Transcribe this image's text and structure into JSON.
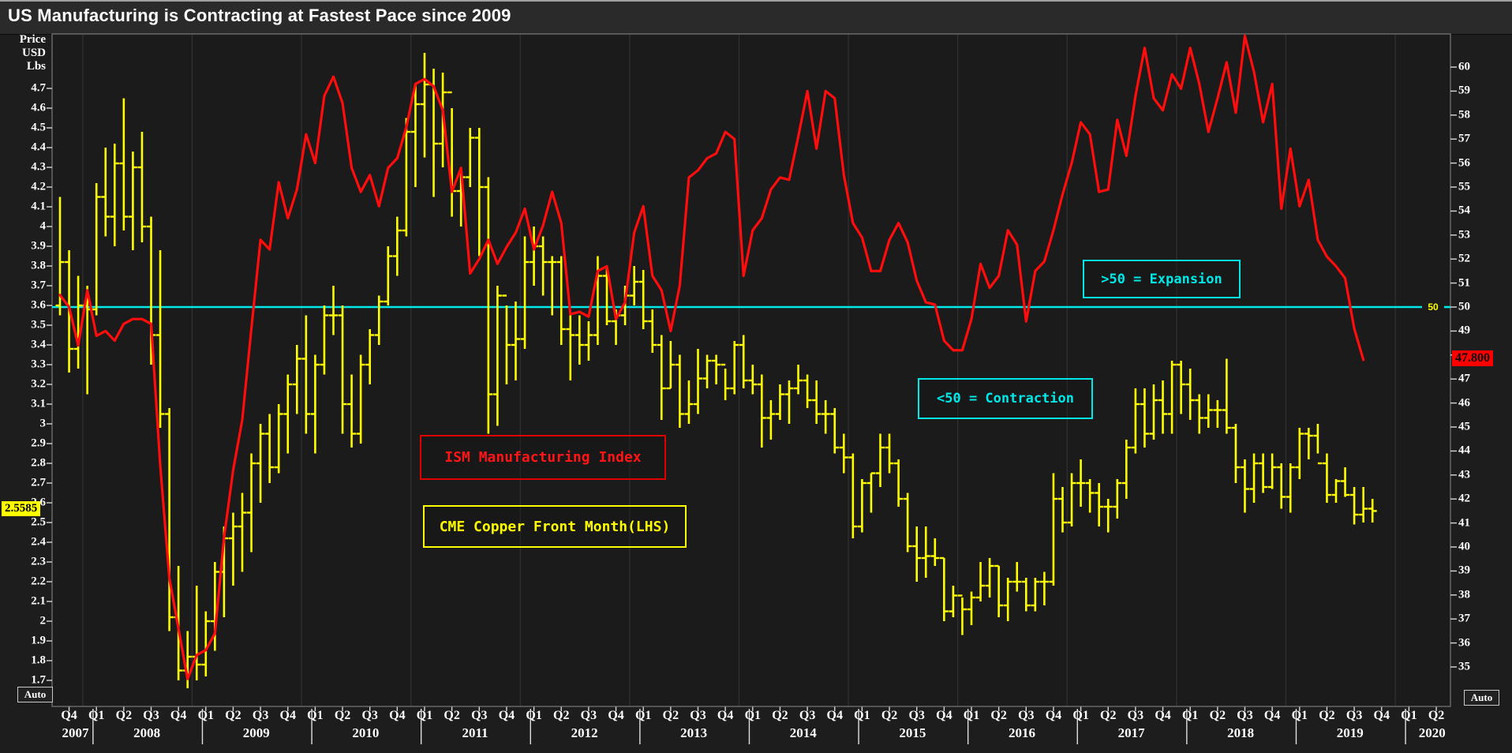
{
  "title": "US Manufacturing is Contracting at Fastest Pace since 2009",
  "left_axis": {
    "header": [
      "Price",
      "USD",
      "Lbs"
    ],
    "tick_labels": [
      "4.7",
      "4.6",
      "4.5",
      "4.4",
      "4.3",
      "4.2",
      "4.1",
      "4",
      "3.9",
      "3.8",
      "3.7",
      "3.6",
      "3.5",
      "3.4",
      "3.3",
      "3.2",
      "3.1",
      "3",
      "2.9",
      "2.8",
      "2.7",
      "2.6",
      "2.5",
      "2.4",
      "2.3",
      "2.2",
      "2.1",
      "2",
      "1.9",
      "1.8",
      "1.7"
    ],
    "last_price_tag": "2.5585",
    "auto_label": "Auto"
  },
  "right_axis": {
    "tick_labels": [
      "60",
      "59",
      "58",
      "57",
      "56",
      "55",
      "54",
      "53",
      "52",
      "51",
      "50",
      "49",
      "48",
      "47",
      "46",
      "45",
      "44",
      "43",
      "42",
      "41",
      "40",
      "39",
      "38",
      "37",
      "36",
      "35"
    ],
    "last_value_tag": "47.800",
    "hline_inner_label": "50",
    "auto_label": "Auto"
  },
  "x_axis": {
    "years": [
      {
        "label": "2007",
        "quarters": [
          "Q4"
        ]
      },
      {
        "label": "2008",
        "quarters": [
          "Q1",
          "Q2",
          "Q3",
          "Q4"
        ]
      },
      {
        "label": "2009",
        "quarters": [
          "Q1",
          "Q2",
          "Q3",
          "Q4"
        ]
      },
      {
        "label": "2010",
        "quarters": [
          "Q1",
          "Q2",
          "Q3",
          "Q4"
        ]
      },
      {
        "label": "2011",
        "quarters": [
          "Q1",
          "Q2",
          "Q3",
          "Q4"
        ]
      },
      {
        "label": "2012",
        "quarters": [
          "Q1",
          "Q2",
          "Q3",
          "Q4"
        ]
      },
      {
        "label": "2013",
        "quarters": [
          "Q1",
          "Q2",
          "Q3",
          "Q4"
        ]
      },
      {
        "label": "2014",
        "quarters": [
          "Q1",
          "Q2",
          "Q3",
          "Q4"
        ]
      },
      {
        "label": "2015",
        "quarters": [
          "Q1",
          "Q2",
          "Q3",
          "Q4"
        ]
      },
      {
        "label": "2016",
        "quarters": [
          "Q1",
          "Q2",
          "Q3",
          "Q4"
        ]
      },
      {
        "label": "2017",
        "quarters": [
          "Q1",
          "Q2",
          "Q3",
          "Q4"
        ]
      },
      {
        "label": "2018",
        "quarters": [
          "Q1",
          "Q2",
          "Q3",
          "Q4"
        ]
      },
      {
        "label": "2019",
        "quarters": [
          "Q1",
          "Q2",
          "Q3",
          "Q4"
        ]
      },
      {
        "label": "2020",
        "quarters": [
          "Q1",
          "Q2"
        ]
      }
    ]
  },
  "annotations": {
    "expansion": ">50 = Expansion",
    "contraction": "<50 = Contraction",
    "ism_label": "ISM Manufacturing Index",
    "copper_label": "CME Copper Front Month(LHS)"
  },
  "colors": {
    "copper": "#ffff00",
    "ism": "#ff0d0d",
    "threshold": "#00e8e8",
    "tag_yellow": "#ffff00",
    "tag_red": "#ff0000",
    "grid": "#323232",
    "border": "#7a7a7a",
    "tick": "#d8d8d8"
  },
  "chart_data": {
    "type": "mixed",
    "title": "US Manufacturing is Contracting at Fastest Pace since 2009",
    "x_start_month": "2007-10",
    "x_axis_end_month": "2020-06",
    "left_ylabel": "Price USD Lbs",
    "left_ylim": [
      1.57,
      4.98
    ],
    "right_ylim": [
      33.4,
      61.4
    ],
    "grid": "vertical-year-lines",
    "legend_position": "in-plot-annotation-boxes",
    "hline": {
      "value": 50,
      "axis": "right",
      "labels": [
        ">50 = Expansion",
        "<50 = Contraction"
      ]
    },
    "series": [
      {
        "name": "CME Copper Front Month(LHS)",
        "type": "ohlc_bar",
        "axis": "left",
        "interval": "monthly",
        "start_month": "2007-10",
        "end_month": "2019-10",
        "first_open": 3.6,
        "last_price": 2.5585,
        "high": [
          4.15,
          3.88,
          3.75,
          3.7,
          4.22,
          4.4,
          4.42,
          4.65,
          4.38,
          4.48,
          4.05,
          3.88,
          3.08,
          2.28,
          1.95,
          2.18,
          2.05,
          2.3,
          2.48,
          2.55,
          2.65,
          2.85,
          3.0,
          3.05,
          3.1,
          3.25,
          3.4,
          3.55,
          3.35,
          3.6,
          3.7,
          3.6,
          3.25,
          3.35,
          3.48,
          3.65,
          3.9,
          4.05,
          4.55,
          4.72,
          4.88,
          4.8,
          4.78,
          4.6,
          4.3,
          4.5,
          4.5,
          4.25,
          3.7,
          3.6,
          3.62,
          3.95,
          4.0,
          3.95,
          3.85,
          3.85,
          3.55,
          3.55,
          3.52,
          3.85,
          3.8,
          3.58,
          3.7,
          3.8,
          3.78,
          3.58,
          3.45,
          3.42,
          3.35,
          3.22,
          3.38,
          3.35,
          3.35,
          3.28,
          3.42,
          3.45,
          3.3,
          3.25,
          3.12,
          3.2,
          3.22,
          3.3,
          3.25,
          3.22,
          3.12,
          3.08,
          2.95,
          2.85,
          2.72,
          2.75,
          2.95,
          2.95,
          2.82,
          2.65,
          2.48,
          2.48,
          2.42,
          2.32,
          2.18,
          2.12,
          2.15,
          2.3,
          2.32,
          2.28,
          2.22,
          2.3,
          2.22,
          2.22,
          2.25,
          2.75,
          2.68,
          2.75,
          2.82,
          2.72,
          2.7,
          2.62,
          2.72,
          2.92,
          3.18,
          3.18,
          3.2,
          3.22,
          3.32,
          3.32,
          3.28,
          3.15,
          3.15,
          3.12,
          3.33,
          3.0,
          2.82,
          2.85,
          2.85,
          2.85,
          2.8,
          2.8,
          2.98,
          2.98,
          3.0,
          2.85,
          2.72,
          2.78,
          2.68,
          2.68,
          2.62
        ],
        "low": [
          3.55,
          3.26,
          3.28,
          3.15,
          3.55,
          3.95,
          3.9,
          3.98,
          3.88,
          3.92,
          3.3,
          2.98,
          1.95,
          1.7,
          1.66,
          1.7,
          1.72,
          1.85,
          2.02,
          2.18,
          2.25,
          2.35,
          2.6,
          2.7,
          2.75,
          2.85,
          3.05,
          2.95,
          2.85,
          3.25,
          3.45,
          2.95,
          2.88,
          2.9,
          3.2,
          3.4,
          3.6,
          3.75,
          3.95,
          4.2,
          4.35,
          4.15,
          4.3,
          4.05,
          4.0,
          4.2,
          3.85,
          2.95,
          2.99,
          3.2,
          3.22,
          3.38,
          3.7,
          3.65,
          3.55,
          3.4,
          3.22,
          3.3,
          3.32,
          3.4,
          3.5,
          3.4,
          3.5,
          3.6,
          3.48,
          3.36,
          3.02,
          3.18,
          2.98,
          3.0,
          3.05,
          3.18,
          3.2,
          3.12,
          3.15,
          3.18,
          3.15,
          2.88,
          2.92,
          3.02,
          3.0,
          3.15,
          3.08,
          3.0,
          2.95,
          2.85,
          2.75,
          2.42,
          2.45,
          2.55,
          2.68,
          2.75,
          2.58,
          2.35,
          2.2,
          2.22,
          2.28,
          2.0,
          2.02,
          1.93,
          1.98,
          2.1,
          2.12,
          2.02,
          2.0,
          2.15,
          2.05,
          2.05,
          2.08,
          2.18,
          2.45,
          2.48,
          2.58,
          2.55,
          2.48,
          2.45,
          2.52,
          2.62,
          2.85,
          2.88,
          2.92,
          2.95,
          2.95,
          3.05,
          3.02,
          2.95,
          2.98,
          2.98,
          2.95,
          2.7,
          2.55,
          2.6,
          2.65,
          2.67,
          2.57,
          2.55,
          2.72,
          2.82,
          2.85,
          2.6,
          2.6,
          2.63,
          2.49,
          2.5,
          2.5
        ],
        "close": [
          3.82,
          3.38,
          3.6,
          3.58,
          4.15,
          4.05,
          4.32,
          4.05,
          4.3,
          4.0,
          3.45,
          3.05,
          2.02,
          1.75,
          1.82,
          1.78,
          2.0,
          2.25,
          2.42,
          2.48,
          2.55,
          2.8,
          2.95,
          2.78,
          3.05,
          3.2,
          3.33,
          3.05,
          3.3,
          3.55,
          3.55,
          3.1,
          2.95,
          3.3,
          3.45,
          3.62,
          3.85,
          3.98,
          4.48,
          4.62,
          4.72,
          4.42,
          4.68,
          4.18,
          4.25,
          4.45,
          4.2,
          3.15,
          3.65,
          3.4,
          3.43,
          3.82,
          3.9,
          3.82,
          3.82,
          3.48,
          3.45,
          3.4,
          3.45,
          3.75,
          3.52,
          3.55,
          3.65,
          3.72,
          3.52,
          3.4,
          3.18,
          3.3,
          3.05,
          3.1,
          3.23,
          3.32,
          3.3,
          3.18,
          3.4,
          3.22,
          3.2,
          3.03,
          3.05,
          3.15,
          3.18,
          3.22,
          3.12,
          3.05,
          3.05,
          2.88,
          2.83,
          2.48,
          2.7,
          2.75,
          2.88,
          2.8,
          2.62,
          2.38,
          2.32,
          2.33,
          2.32,
          2.05,
          2.13,
          2.06,
          2.12,
          2.18,
          2.28,
          2.08,
          2.2,
          2.2,
          2.08,
          2.2,
          2.2,
          2.62,
          2.5,
          2.7,
          2.7,
          2.65,
          2.58,
          2.58,
          2.7,
          2.88,
          3.1,
          2.95,
          3.12,
          3.05,
          3.3,
          3.2,
          3.12,
          3.03,
          3.07,
          3.07,
          2.98,
          2.78,
          2.67,
          2.8,
          2.68,
          2.78,
          2.63,
          2.78,
          2.95,
          2.94,
          2.8,
          2.64,
          2.71,
          2.64,
          2.54,
          2.57,
          2.5585
        ]
      },
      {
        "name": "ISM Manufacturing Index",
        "type": "line",
        "axis": "right",
        "interval": "monthly",
        "start_month": "2007-10",
        "end_month": "2019-09",
        "last_value": 47.8,
        "values": [
          50.5,
          50.0,
          48.4,
          50.7,
          48.8,
          49.0,
          48.6,
          49.3,
          49.5,
          49.5,
          49.3,
          43.4,
          38.7,
          36.6,
          34.5,
          35.5,
          35.7,
          36.4,
          40.4,
          43.2,
          45.3,
          49.1,
          52.8,
          52.4,
          55.2,
          53.7,
          54.9,
          57.2,
          56.0,
          58.8,
          59.6,
          58.5,
          55.8,
          54.8,
          55.5,
          54.2,
          55.8,
          56.2,
          57.5,
          59.3,
          59.5,
          59.2,
          58.2,
          54.8,
          55.8,
          51.4,
          52.0,
          52.8,
          51.8,
          52.5,
          53.1,
          54.1,
          52.4,
          53.4,
          54.8,
          53.5,
          49.7,
          49.8,
          49.6,
          51.5,
          51.7,
          49.5,
          50.2,
          53.1,
          54.2,
          51.3,
          50.7,
          49.0,
          50.9,
          55.4,
          55.7,
          56.2,
          56.4,
          57.3,
          57.0,
          51.3,
          53.2,
          53.7,
          54.9,
          55.4,
          55.3,
          57.1,
          59.0,
          56.6,
          59.0,
          58.7,
          55.5,
          53.5,
          52.9,
          51.5,
          51.5,
          52.8,
          53.5,
          52.7,
          51.1,
          50.2,
          50.1,
          48.6,
          48.2,
          48.2,
          49.5,
          51.8,
          50.8,
          51.3,
          53.2,
          52.6,
          49.4,
          51.5,
          51.9,
          53.2,
          54.7,
          56.0,
          57.7,
          57.2,
          54.8,
          54.9,
          57.8,
          56.3,
          58.8,
          60.8,
          58.7,
          58.2,
          59.7,
          59.1,
          60.8,
          59.3,
          57.3,
          58.7,
          60.2,
          58.1,
          61.3,
          59.8,
          57.7,
          59.3,
          54.1,
          56.6,
          54.2,
          55.3,
          52.8,
          52.1,
          51.7,
          51.2,
          49.1,
          47.8
        ]
      }
    ]
  }
}
